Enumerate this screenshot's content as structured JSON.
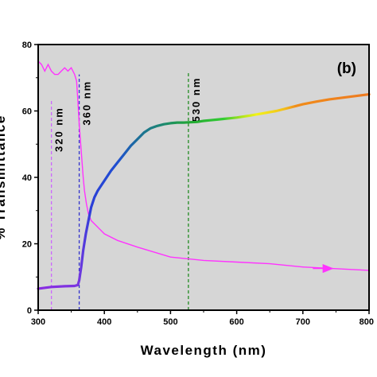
{
  "chart_data": {
    "type": "line",
    "panel_label": "(b)",
    "xlabel": "Wavelength (nm)",
    "ylabel": "% Transmittance",
    "xlim": [
      300,
      800
    ],
    "ylim": [
      0,
      80
    ],
    "x_ticks": [
      "300",
      "400",
      "500",
      "600",
      "700",
      "800"
    ],
    "x_minor_ticks": [
      350,
      450,
      550,
      650,
      750
    ],
    "y_ticks": [
      "0",
      "20",
      "40",
      "60",
      "80"
    ],
    "y_minor_ticks": [
      10,
      30,
      50,
      70
    ],
    "grid": false,
    "colors": {
      "plot_bg": "#d6d6d6",
      "transmittance": "#ff33ff",
      "marker_320": "#cc66ff",
      "marker_360": "#3333cc",
      "marker_530": "#228b22"
    },
    "annotations": [
      {
        "text": "320 nm",
        "x": 320,
        "y_from": 0,
        "y_to": 63,
        "color": "#cc66ff"
      },
      {
        "text": "360 nm",
        "x": 362,
        "y_from": 0,
        "y_to": 71,
        "color": "#3333cc"
      },
      {
        "text": "530 nm",
        "x": 527,
        "y_from": 0,
        "y_to": 72,
        "color": "#228b22"
      }
    ],
    "series": [
      {
        "kind": "line",
        "x": [
          300,
          305,
          310,
          315,
          320,
          325,
          330,
          335,
          340,
          345,
          350,
          355,
          358,
          360,
          362,
          365,
          368,
          370,
          373,
          376,
          380,
          390,
          400,
          420,
          450,
          500,
          550,
          600,
          650,
          700,
          750,
          800
        ],
        "y": [
          75,
          74,
          72,
          74,
          72,
          71,
          71,
          72,
          73,
          72,
          73,
          71,
          69,
          63,
          56,
          48,
          40,
          36,
          32,
          29,
          27,
          25,
          23,
          21,
          19,
          16,
          15,
          14.5,
          14,
          13,
          12.5,
          12
        ],
        "arrow_at": 745
      },
      {
        "kind": "gradient",
        "x": [
          300,
          320,
          340,
          355,
          360,
          362,
          365,
          368,
          372,
          376,
          380,
          385,
          390,
          400,
          410,
          420,
          430,
          440,
          450,
          460,
          470,
          480,
          490,
          500,
          510,
          520,
          530,
          540,
          550,
          560,
          570,
          580,
          590,
          600,
          620,
          640,
          660,
          680,
          700,
          720,
          740,
          760,
          780,
          800
        ],
        "y": [
          6.5,
          7,
          7.2,
          7.3,
          7.6,
          9,
          13,
          18,
          23,
          27,
          31,
          34,
          36,
          39,
          42,
          44.5,
          47,
          49.5,
          51.5,
          53.5,
          54.8,
          55.5,
          56,
          56.3,
          56.5,
          56.5,
          56.6,
          56.7,
          57,
          57.2,
          57.4,
          57.6,
          57.8,
          58,
          58.6,
          59.3,
          60,
          61,
          62,
          62.8,
          63.5,
          64,
          64.5,
          65
        ],
        "color_stops": [
          {
            "x": 300,
            "color": "#8a2be2"
          },
          {
            "x": 360,
            "color": "#7b36e0"
          },
          {
            "x": 380,
            "color": "#2b3fd8"
          },
          {
            "x": 420,
            "color": "#1e4fd0"
          },
          {
            "x": 450,
            "color": "#1c6e9a"
          },
          {
            "x": 490,
            "color": "#1d8a6e"
          },
          {
            "x": 530,
            "color": "#22a833"
          },
          {
            "x": 580,
            "color": "#33cc33"
          },
          {
            "x": 610,
            "color": "#b6e61a"
          },
          {
            "x": 630,
            "color": "#f2f21a"
          },
          {
            "x": 670,
            "color": "#f2c21a"
          },
          {
            "x": 690,
            "color": "#f08c1a"
          },
          {
            "x": 800,
            "color": "#ee7a20"
          }
        ]
      }
    ]
  }
}
